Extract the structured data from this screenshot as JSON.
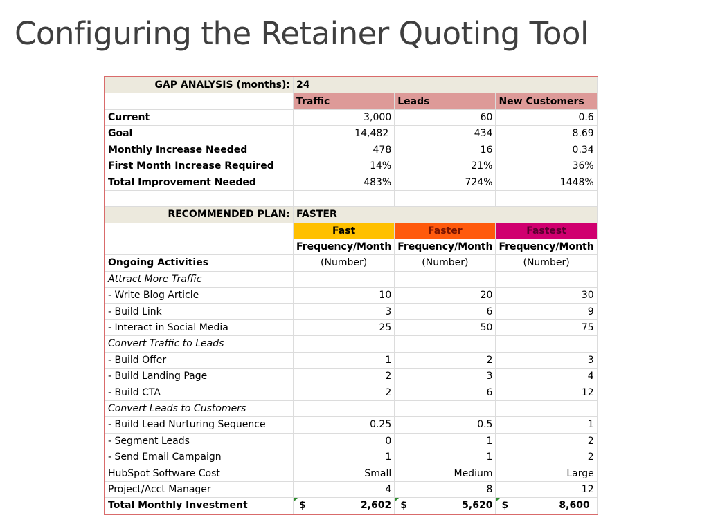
{
  "slide": {
    "title": "Configuring the Retainer Quoting Tool"
  },
  "gap": {
    "label": "GAP ANALYSIS (months):",
    "value": "24",
    "headers": [
      "Traffic",
      "Leads",
      "New Customers"
    ],
    "rows": [
      {
        "label": "Current",
        "values": [
          "3,000",
          "60",
          "0.6"
        ]
      },
      {
        "label": "Goal",
        "values": [
          "14,482",
          "434",
          "8.69"
        ]
      },
      {
        "label": "Monthly Increase Needed",
        "values": [
          "478",
          "16",
          "0.34"
        ]
      },
      {
        "label": "First Month Increase Required",
        "values": [
          "14%",
          "21%",
          "36%"
        ]
      },
      {
        "label": "Total Improvement Needed",
        "values": [
          "483%",
          "724%",
          "1448%"
        ]
      }
    ]
  },
  "plan": {
    "label": "RECOMMENDED PLAN:",
    "value": "FASTER",
    "tiers": [
      "Fast",
      "Faster",
      "Fastest"
    ],
    "freq": [
      "Frequency/Month",
      "Frequency/Month",
      "Frequency/Month"
    ],
    "ongoing_label": "Ongoing Activities",
    "units": [
      "(Number)",
      "(Number)",
      "(Number)"
    ],
    "sections": [
      {
        "title": "Attract More Traffic",
        "rows": [
          {
            "label": "- Write Blog Article",
            "values": [
              "10",
              "20",
              "30"
            ]
          },
          {
            "label": "- Build Link",
            "values": [
              "3",
              "6",
              "9"
            ]
          },
          {
            "label": "- Interact in Social Media",
            "values": [
              "25",
              "50",
              "75"
            ]
          }
        ]
      },
      {
        "title": "Convert Traffic to Leads",
        "rows": [
          {
            "label": "- Build Offer",
            "values": [
              "1",
              "2",
              "3"
            ]
          },
          {
            "label": "- Build Landing Page",
            "values": [
              "2",
              "3",
              "4"
            ]
          },
          {
            "label": "- Build CTA",
            "values": [
              "2",
              "6",
              "12"
            ]
          }
        ]
      },
      {
        "title": "Convert Leads to Customers",
        "rows": [
          {
            "label": "- Build Lead Nurturing Sequence",
            "values": [
              "0.25",
              "0.5",
              "1"
            ]
          },
          {
            "label": "- Segment Leads",
            "values": [
              "0",
              "1",
              "2"
            ]
          },
          {
            "label": "- Send Email Campaign",
            "values": [
              "1",
              "1",
              "2"
            ]
          }
        ]
      }
    ],
    "extra_rows": [
      {
        "label": "HubSpot Software Cost",
        "values": [
          "Small",
          "Medium",
          "Large"
        ]
      },
      {
        "label": "Project/Acct Manager",
        "values": [
          "4",
          "8",
          "12"
        ]
      }
    ],
    "total": {
      "label": "Total Monthly Investment",
      "currency": "$",
      "values": [
        "2,602",
        "5,620",
        "8,600"
      ]
    }
  },
  "colors": {
    "title_text": "#3f3f3f",
    "sheet_border": "#d96b6b",
    "band": "#ece9dd",
    "pink_header": "#dd9a98",
    "fast": "#ffc000",
    "faster": "#ff5a0c",
    "fastest": "#d0006f"
  }
}
